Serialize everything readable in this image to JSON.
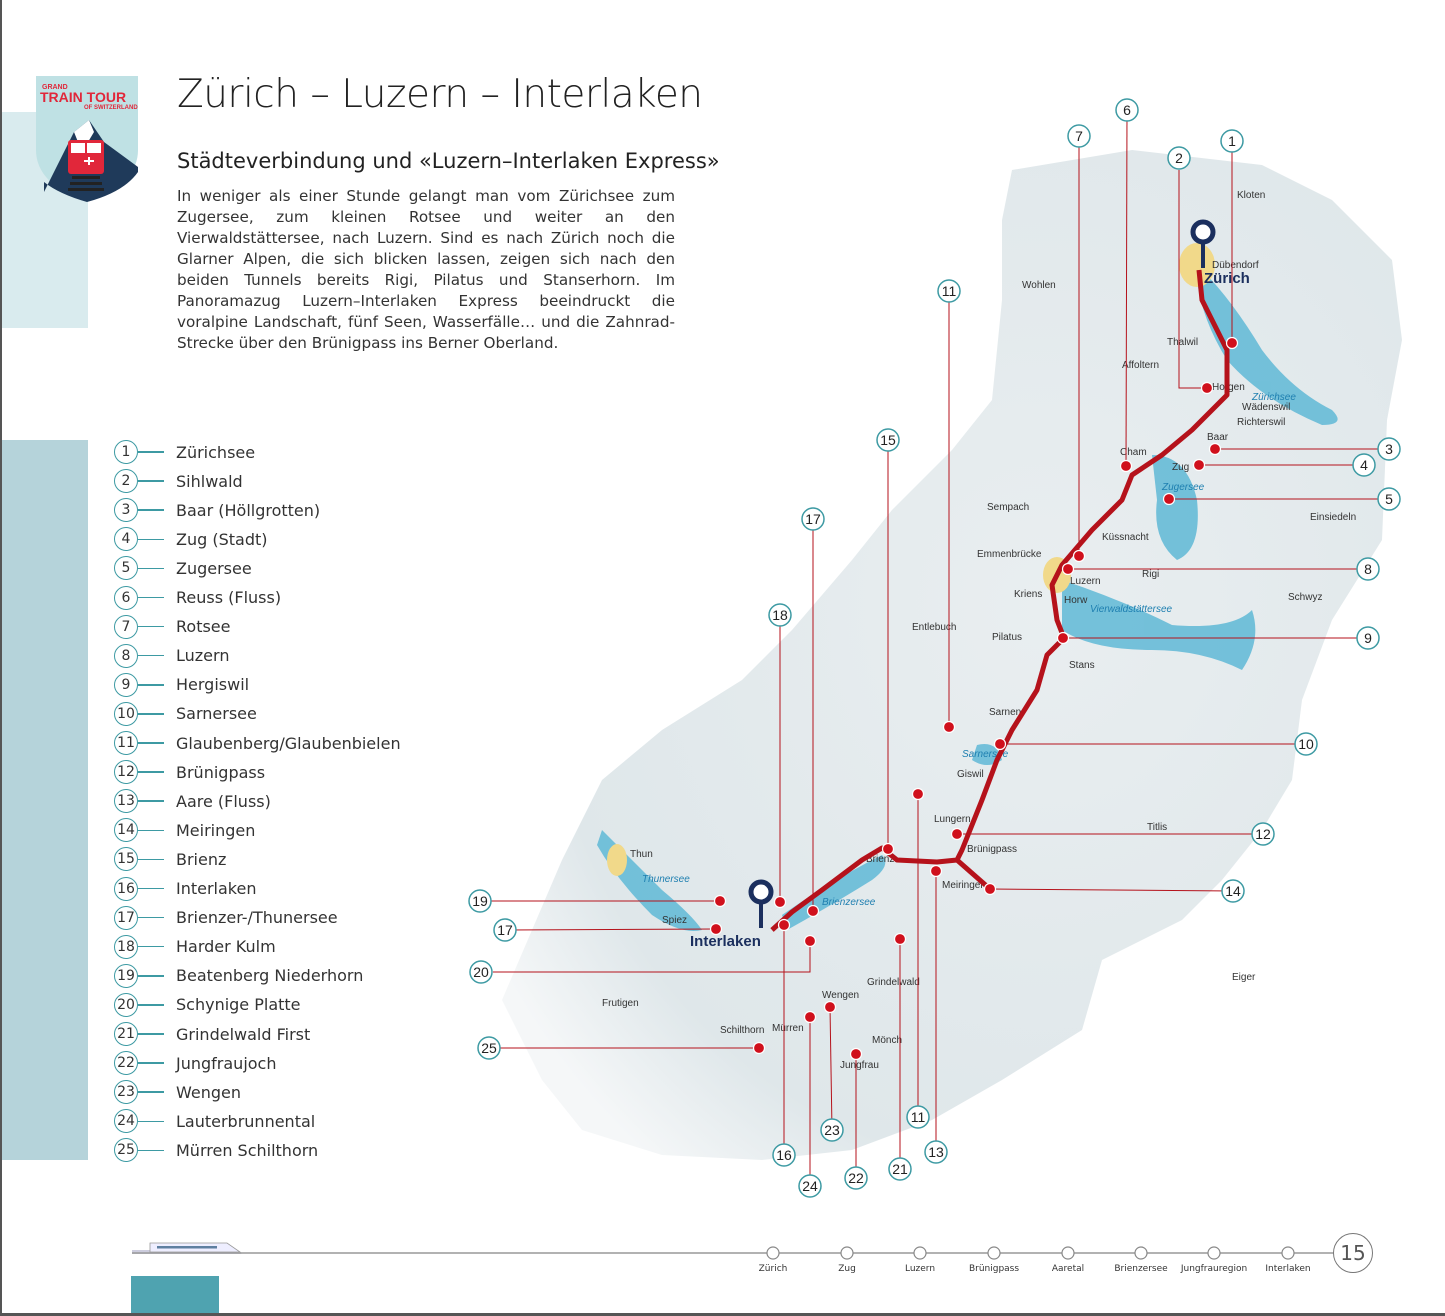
{
  "logo": {
    "line1": "GRAND",
    "line2": "TRAIN TOUR",
    "line3": "OF SWITZERLAND"
  },
  "title": "Zürich – Luzern – Interlaken",
  "subtitle": "Städteverbindung und «Luzern–Interlaken Express»",
  "intro": "In weniger als einer Stunde gelangt man vom Zürichsee zum Zugersee, zum kleinen Rotsee und weiter an den Vierwaldstättersee, nach Luzern. Sind es nach Zürich noch die Glarner Alpen, die sich blicken lassen, zeigen sich nach den beiden Tunnels bereits Rigi, Pilatus und Stanserhorn. Im Panoramazug Luzern–Interlaken Express beeindruckt die voralpine Landschaft, fünf Seen, Wasserfälle… und die Zahnrad-Strecke über den Brünigpass ins Berner Oberland.",
  "legend": [
    {
      "n": "1",
      "label": "Zürichsee"
    },
    {
      "n": "2",
      "label": "Sihlwald"
    },
    {
      "n": "3",
      "label": "Baar (Höllgrotten)"
    },
    {
      "n": "4",
      "label": "Zug (Stadt)"
    },
    {
      "n": "5",
      "label": "Zugersee"
    },
    {
      "n": "6",
      "label": "Reuss (Fluss)"
    },
    {
      "n": "7",
      "label": "Rotsee"
    },
    {
      "n": "8",
      "label": "Luzern"
    },
    {
      "n": "9",
      "label": "Hergiswil"
    },
    {
      "n": "10",
      "label": "Sarnersee"
    },
    {
      "n": "11",
      "label": "Glaubenberg/Glaubenbielen"
    },
    {
      "n": "12",
      "label": "Brünigpass"
    },
    {
      "n": "13",
      "label": "Aare (Fluss)"
    },
    {
      "n": "14",
      "label": "Meiringen"
    },
    {
      "n": "15",
      "label": "Brienz"
    },
    {
      "n": "16",
      "label": "Interlaken"
    },
    {
      "n": "17",
      "label": "Brienzer-/Thunersee"
    },
    {
      "n": "18",
      "label": "Harder Kulm"
    },
    {
      "n": "19",
      "label": "Beatenberg Niederhorn"
    },
    {
      "n": "20",
      "label": "Schynige Platte"
    },
    {
      "n": "21",
      "label": "Grindelwald First"
    },
    {
      "n": "22",
      "label": "Jungfraujoch"
    },
    {
      "n": "23",
      "label": "Wengen"
    },
    {
      "n": "24",
      "label": "Lauterbrunnental"
    },
    {
      "n": "25",
      "label": "Mürren Schilthorn"
    }
  ],
  "map": {
    "pins": [
      {
        "label": "Zürich"
      },
      {
        "label": "Interlaken"
      }
    ],
    "places": [
      "Kloten",
      "Dübendorf",
      "Thalwil",
      "Horgen",
      "Wädenswil",
      "Richterswil",
      "Baar",
      "Zug",
      "Cham",
      "Küssnacht",
      "Luzern",
      "Kriens",
      "Horw",
      "Stans",
      "Sarnen",
      "Giswil",
      "Lungern",
      "Brünigpass",
      "Meiringen",
      "Brienz",
      "Thun",
      "Spiez",
      "Wengen",
      "Jungfrau",
      "Schilthorn",
      "Mürren",
      "Pilatus",
      "Rigi",
      "Schwyz",
      "Einsiedeln",
      "Titlis",
      "Eiger",
      "Mönch",
      "Grindelwald",
      "Frutigen",
      "Wohlen",
      "Affoltern",
      "Sempach",
      "Emmenbrücke",
      "Entlebuch"
    ],
    "lakes": [
      "Zürichsee",
      "Zugersee",
      "Vierwaldstättersee",
      "Sarnersee",
      "Brienzersee",
      "Thunersee"
    ],
    "callouts": [
      "1",
      "2",
      "3",
      "4",
      "5",
      "6",
      "7",
      "8",
      "9",
      "10",
      "11",
      "11",
      "12",
      "13",
      "14",
      "15",
      "16",
      "17",
      "17",
      "18",
      "19",
      "20",
      "21",
      "22",
      "23",
      "24",
      "25"
    ],
    "route_color": "#b5121b",
    "callout_color": "#3d9aa3"
  },
  "timeline": {
    "stops": [
      "Zürich",
      "Zug",
      "Luzern",
      "Brünigpass",
      "Aaretal",
      "Brienzersee",
      "Jungfrauregion",
      "Interlaken"
    ]
  },
  "page_number": "15"
}
